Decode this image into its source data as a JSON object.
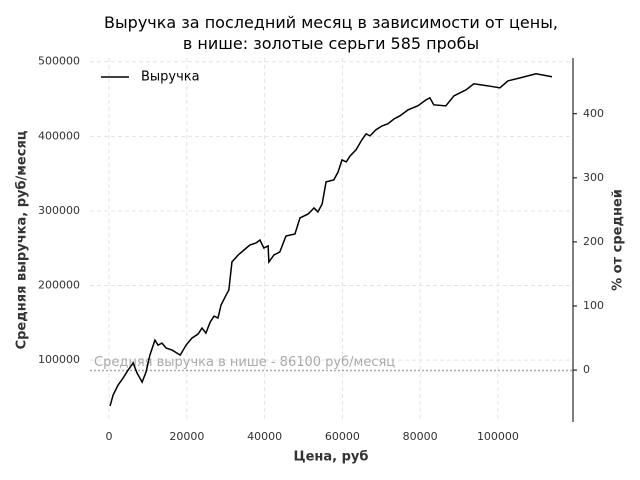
{
  "chart_data": {
    "type": "line",
    "title": "Выручка за последний месяц в зависимости от цены,\nв нише: золотые серьги 585 пробы",
    "xlabel": "Цена, руб",
    "ylabel": "Средняя выручка, руб/месяц",
    "y2label": "% от средней",
    "x": [
      260,
      1030,
      2300,
      3600,
      4900,
      6200,
      7200,
      8500,
      9500,
      10500,
      11800,
      12600,
      13600,
      14700,
      16200,
      18300,
      19800,
      21300,
      22900,
      23900,
      24900,
      26000,
      27000,
      28000,
      28800,
      30100,
      30800,
      31600,
      33200,
      34700,
      36200,
      37800,
      38800,
      39800,
      40900,
      41100,
      42400,
      43900,
      45500,
      47800,
      49100,
      51200,
      52700,
      53700,
      54800,
      55800,
      57800,
      58900,
      59900,
      61000,
      62000,
      63500,
      65000,
      66100,
      67100,
      68600,
      70200,
      71700,
      73300,
      74800,
      76900,
      79400,
      81500,
      82500,
      83500,
      86600,
      88700,
      91800,
      93800,
      97400,
      100500,
      102600,
      105700,
      109800,
      113900
    ],
    "series": [
      {
        "name": "Выручка",
        "color": "#000000",
        "values": [
          38300,
          53000,
          66400,
          75800,
          86600,
          96000,
          82600,
          70500,
          83900,
          106700,
          126800,
          120000,
          122800,
          116100,
          113400,
          106700,
          120000,
          129500,
          134900,
          143000,
          136200,
          151000,
          159000,
          156400,
          173800,
          187200,
          193900,
          231500,
          240900,
          247600,
          254300,
          257000,
          261000,
          250300,
          253000,
          231500,
          240900,
          244900,
          266400,
          269100,
          290600,
          295900,
          304000,
          298600,
          309400,
          338900,
          341600,
          352300,
          368400,
          365700,
          373800,
          381800,
          395200,
          403300,
          400600,
          408700,
          414000,
          416700,
          423400,
          427500,
          435500,
          440900,
          448900,
          451600,
          442200,
          440900,
          454300,
          462300,
          470400,
          467700,
          465000,
          474400,
          478400,
          483800,
          479800
        ]
      }
    ],
    "hline": {
      "value": 86100,
      "color": "#aaaaaa",
      "label": "Средняя выручка в нише - 86100 руб/месяц"
    },
    "xlim": [
      -4900,
      119300
    ],
    "xticks": [
      0,
      20000,
      40000,
      60000,
      80000,
      100000
    ],
    "ylim": [
      17000,
      505000
    ],
    "yticks": [
      100000,
      200000,
      300000,
      400000,
      500000
    ],
    "y2lim": [
      -81,
      487
    ],
    "y2ticks": [
      0,
      100,
      200,
      300,
      400
    ],
    "grid": true,
    "legend": "upper left"
  }
}
